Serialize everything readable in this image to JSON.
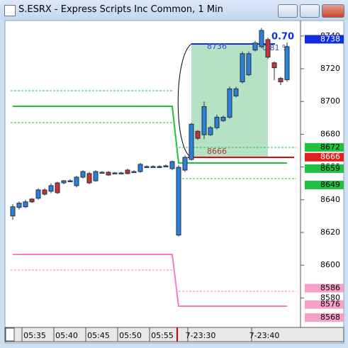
{
  "window": {
    "title": "S.ESRX - Express Scripts Inc Common, 1 Min"
  },
  "chart_data": {
    "type": "candlestick",
    "categories": [
      null,
      null,
      null,
      "05:35",
      null,
      null,
      null,
      null,
      "05:40",
      null,
      null,
      null,
      null,
      "05:45",
      null,
      null,
      null,
      null,
      "05:50",
      null,
      null,
      null,
      null,
      "05:55",
      null,
      null,
      null,
      null,
      null,
      "7-23:30",
      null,
      null,
      null,
      null,
      null,
      null,
      null,
      null,
      null,
      "7-23:40",
      null,
      null,
      null,
      null
    ],
    "open": [
      8630.1,
      8635.3,
      8635.7,
      8640.4,
      8640.9,
      8646.0,
      8645.2,
      8650.3,
      8650.3,
      8651.6,
      8648.6,
      8653.8,
      8656.0,
      8651.6,
      8656.8,
      8656.8,
      8656.4,
      8656.4,
      8658.1,
      8657.2,
      8657.2,
      8660.3,
      8660.3,
      8660.3,
      8660.7,
      8659.0,
      8618.4,
      8658.1,
      8664.6,
      8681.8,
      8679.7,
      8679.7,
      8684.0,
      8688.3,
      8690.4,
      8703.4,
      8712.0,
      8716.3,
      8731.4,
      8733.5,
      8737.8,
      8723.6,
      8714.1,
      8713.3
    ],
    "high": [
      8637.4,
      8639.0,
      8640.0,
      8641.0,
      8647.0,
      8647.0,
      8650.0,
      8651.0,
      8652.0,
      8652.5,
      8654.5,
      8658.0,
      8657.0,
      8658.0,
      8657.5,
      8657.5,
      8657.0,
      8657.0,
      8659.0,
      8658.0,
      8662.5,
      8661.0,
      8661.0,
      8661.0,
      8661.5,
      8664.0,
      8661.0,
      8667.0,
      8687.0,
      8682.5,
      8700.0,
      8685.0,
      8692.0,
      8691.5,
      8709.0,
      8709.0,
      8730.5,
      8730.5,
      8737.0,
      8745.0,
      8739.0,
      8724.5,
      8715.0,
      8736.0
    ],
    "low": [
      8627.8,
      8634.0,
      8635.0,
      8638.0,
      8640.0,
      8642.5,
      8644.0,
      8643.5,
      8649.5,
      8651.0,
      8647.5,
      8653.0,
      8649.5,
      8651.0,
      8656.0,
      8654.5,
      8655.8,
      8655.8,
      8655.5,
      8656.5,
      8656.5,
      8659.5,
      8659.5,
      8659.5,
      8660.0,
      8658.0,
      8617.5,
      8657.0,
      8664.0,
      8676.5,
      8677.0,
      8679.0,
      8683.0,
      8687.5,
      8689.5,
      8702.5,
      8711.0,
      8715.5,
      8730.5,
      8732.5,
      8726.0,
      8713.0,
      8710.0,
      8712.0
    ],
    "close": [
      8635.7,
      8637.9,
      8638.7,
      8638.7,
      8646.0,
      8643.4,
      8648.6,
      8644.3,
      8651.6,
      8651.6,
      8653.8,
      8657.2,
      8650.3,
      8657.2,
      8656.8,
      8655.1,
      8656.4,
      8656.4,
      8656.0,
      8657.2,
      8661.6,
      8660.3,
      8660.3,
      8660.3,
      8660.7,
      8663.3,
      8659.8,
      8665.9,
      8686.1,
      8677.5,
      8696.9,
      8684.0,
      8690.4,
      8690.4,
      8707.7,
      8707.7,
      8729.2,
      8729.2,
      8735.7,
      8743.4,
      8727.1,
      8720.6,
      8712.0,
      8733.5
    ],
    "up_color": "#2d7fd8",
    "down_color": "#c83232",
    "ylim": [
      8562,
      8749
    ],
    "yticks": [
      8580,
      8600,
      8620,
      8640,
      8660,
      8680,
      8700,
      8720,
      8740
    ],
    "price_tags": [
      {
        "value": 8738,
        "color": "#1030e0"
      },
      {
        "value": 8672,
        "color": "#20c040"
      },
      {
        "value": 8666,
        "color": "#e02020"
      },
      {
        "value": 8659,
        "color": "#20c040"
      },
      {
        "value": 8649,
        "color": "#20c040"
      },
      {
        "value": 8586,
        "color": "#f5a0c8"
      },
      {
        "value": 8576,
        "color": "#f5a0c8"
      },
      {
        "value": 8568,
        "color": "#f5a0c8"
      }
    ],
    "annotations": [
      "8736",
      "8666",
      "0.70",
      "0.81 %"
    ]
  }
}
